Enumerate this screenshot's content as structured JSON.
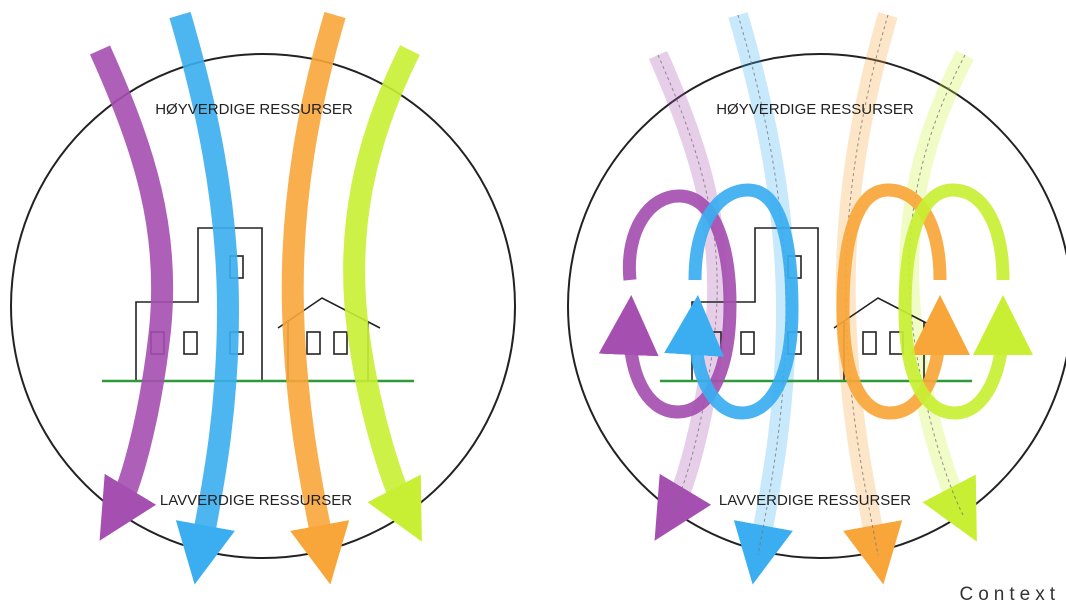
{
  "left_diagram": {
    "top_label": "HØYVERDIGE RESSURSER",
    "bottom_label": "LAVVERDIGE RESSURSER"
  },
  "right_diagram": {
    "top_label": "HØYVERDIGE RESSURSER",
    "bottom_label": "LAVVERDIGE RESSURSER"
  },
  "brand": "Context",
  "colors": {
    "purple": "#a54fb0",
    "blue": "#3aaef0",
    "orange": "#f8a63a",
    "lime": "#c8ef33",
    "ground": "#2e9a3a",
    "outline": "#222222"
  }
}
